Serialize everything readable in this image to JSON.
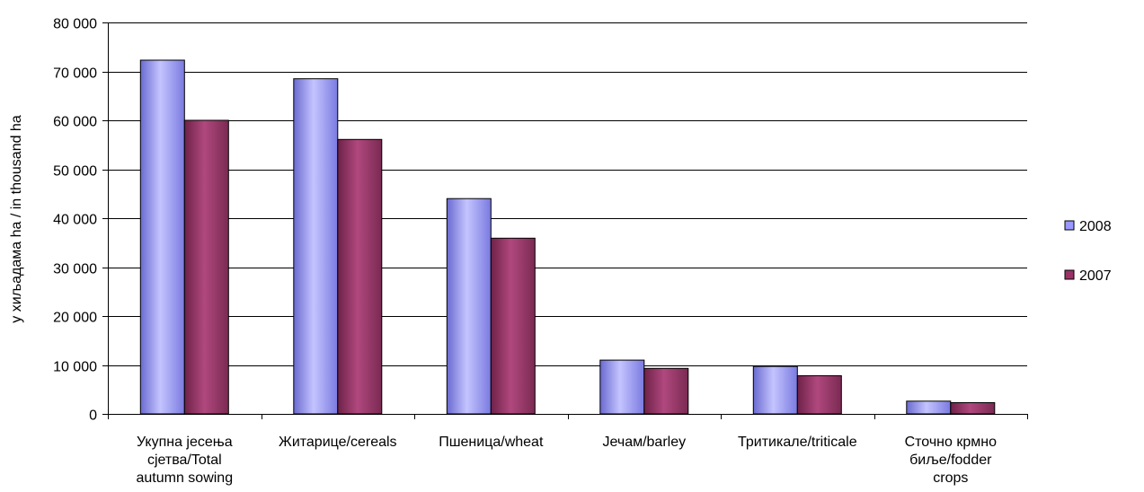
{
  "chart_data": {
    "type": "bar",
    "title": "",
    "xlabel": "",
    "ylabel": "у хиљадама ha / in thousand ha",
    "ylim": [
      0,
      80000
    ],
    "ytick_step": 10000,
    "ytick_labels": [
      "0",
      "10 000",
      "20 000",
      "30 000",
      "40 000",
      "50 000",
      "60 000",
      "70 000",
      "80 000"
    ],
    "grid": true,
    "legend_position": "right",
    "categories": [
      [
        "Укупна јесења",
        "сјетва/Total",
        "autumn sowing"
      ],
      [
        "Житарице/cereals"
      ],
      [
        "Пшеница/wheat"
      ],
      [
        "Јечам/barley"
      ],
      [
        "Тритикале/triticale"
      ],
      [
        "Сточно крмно",
        "биље/fodder",
        "crops"
      ]
    ],
    "series": [
      {
        "name": "2008",
        "color": "#9999ff",
        "values": [
          72300,
          68500,
          44000,
          11000,
          9700,
          2600
        ]
      },
      {
        "name": "2007",
        "color": "#993366",
        "values": [
          60000,
          56100,
          35900,
          9300,
          7800,
          2300
        ]
      }
    ]
  }
}
